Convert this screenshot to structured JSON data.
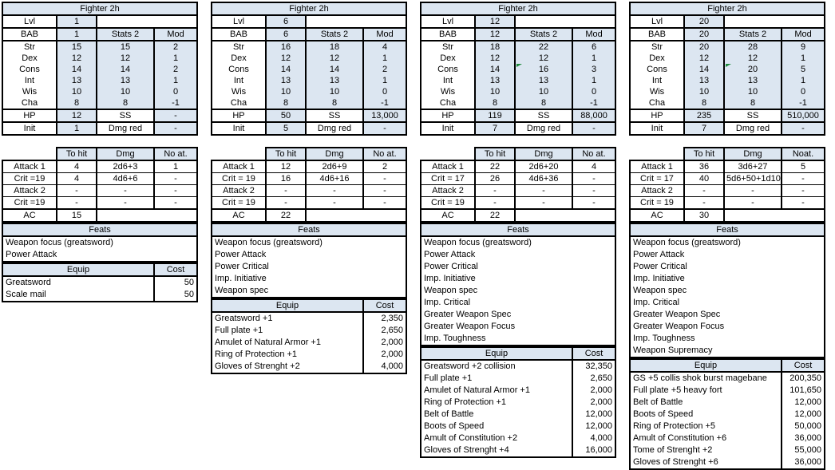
{
  "colors": {
    "cell_fill": "#dce6f1",
    "border": "#000000",
    "marker_green": "#1e8a3c"
  },
  "columns": [
    {
      "title": "Fighter 2h",
      "labels": {
        "lvl": "Lvl",
        "bab": "BAB",
        "stats2": "Stats 2",
        "mod": "Mod",
        "hp": "HP",
        "ss": "SS",
        "init": "Init",
        "dmgred": "Dmg red",
        "tohit": "To hit",
        "dmg": "Dmg",
        "noat": "No at.",
        "ac": "AC",
        "feats": "Feats",
        "equip": "Equip",
        "cost": "Cost"
      },
      "lvl": "1",
      "bab": "1",
      "abilities": [
        {
          "label": "Str",
          "base": "15",
          "stats2": "15",
          "mod": "2",
          "marker": false
        },
        {
          "label": "Dex",
          "base": "12",
          "stats2": "12",
          "mod": "1",
          "marker": false
        },
        {
          "label": "Cons",
          "base": "14",
          "stats2": "14",
          "mod": "2",
          "marker": false
        },
        {
          "label": "Int",
          "base": "13",
          "stats2": "13",
          "mod": "1",
          "marker": false
        },
        {
          "label": "Wis",
          "base": "10",
          "stats2": "10",
          "mod": "0",
          "marker": false
        },
        {
          "label": "Cha",
          "base": "8",
          "stats2": "8",
          "mod": "-1",
          "marker": false
        }
      ],
      "hp": "12",
      "ss_value": "-",
      "init": "1",
      "dmgred_value": "-",
      "attack_rows": [
        {
          "label": "Attack 1",
          "tohit": "4",
          "dmg": "2d6+3",
          "noat": "1"
        },
        {
          "label": "Crit =19",
          "tohit": "4",
          "dmg": "4d6+6",
          "noat": "-"
        },
        {
          "label": "Attack 2",
          "tohit": "-",
          "dmg": "-",
          "noat": "-"
        },
        {
          "label": "Crit =19",
          "tohit": "-",
          "dmg": "-",
          "noat": "-"
        }
      ],
      "ac": "15",
      "feats": [
        "Weapon focus (greatsword)",
        "Power Attack"
      ],
      "equip": [
        {
          "name": "Greatsword",
          "cost": "50"
        },
        {
          "name": "Scale mail",
          "cost": "50"
        }
      ]
    },
    {
      "title": "Fighter 2h",
      "labels": {
        "lvl": "Lvl",
        "bab": "BAB",
        "stats2": "Stats 2",
        "mod": "Mod",
        "hp": "HP",
        "ss": "SS",
        "init": "Init",
        "dmgred": "Dmg red",
        "tohit": "To hit",
        "dmg": "Dmg",
        "noat": "No at.",
        "ac": "AC",
        "feats": "Feats",
        "equip": "Equip",
        "cost": "Cost"
      },
      "lvl": "6",
      "bab": "6",
      "abilities": [
        {
          "label": "Str",
          "base": "16",
          "stats2": "18",
          "mod": "4",
          "marker": false
        },
        {
          "label": "Dex",
          "base": "12",
          "stats2": "12",
          "mod": "1",
          "marker": false
        },
        {
          "label": "Cons",
          "base": "14",
          "stats2": "14",
          "mod": "2",
          "marker": false
        },
        {
          "label": "Int",
          "base": "13",
          "stats2": "13",
          "mod": "1",
          "marker": false
        },
        {
          "label": "Wis",
          "base": "10",
          "stats2": "10",
          "mod": "0",
          "marker": false
        },
        {
          "label": "Cha",
          "base": "8",
          "stats2": "8",
          "mod": "-1",
          "marker": false
        }
      ],
      "hp": "50",
      "ss_value": "13,000",
      "init": "5",
      "dmgred_value": "-",
      "attack_rows": [
        {
          "label": "Attack 1",
          "tohit": "12",
          "dmg": "2d6+9",
          "noat": "2"
        },
        {
          "label": "Crit = 19",
          "tohit": "16",
          "dmg": "4d6+16",
          "noat": "-"
        },
        {
          "label": "Attack 2",
          "tohit": "-",
          "dmg": "-",
          "noat": "-"
        },
        {
          "label": "Crit = 19",
          "tohit": "-",
          "dmg": "-",
          "noat": "-"
        }
      ],
      "ac": "22",
      "feats": [
        "Weapon focus (greatsword)",
        "Power Attack",
        "Power Critical",
        "Imp. Initiative",
        "Weapon spec"
      ],
      "equip": [
        {
          "name": "Greatsword +1",
          "cost": "2,350"
        },
        {
          "name": "Full plate +1",
          "cost": "2,650"
        },
        {
          "name": "Amulet of Natural Armor +1",
          "cost": "2,000"
        },
        {
          "name": "Ring of Protection +1",
          "cost": "2,000"
        },
        {
          "name": "Gloves of Strenght +2",
          "cost": "4,000"
        }
      ]
    },
    {
      "title": "Fighter 2h",
      "labels": {
        "lvl": "Lvl",
        "bab": "BAB",
        "stats2": "Stats 2",
        "mod": "Mod",
        "hp": "HP",
        "ss": "SS",
        "init": "Init",
        "dmgred": "Dmg red",
        "tohit": "To hit",
        "dmg": "Dmg",
        "noat": "No at.",
        "ac": "AC",
        "feats": "Feats",
        "equip": "Equip",
        "cost": "Cost"
      },
      "lvl": "12",
      "bab": "12",
      "abilities": [
        {
          "label": "Str",
          "base": "18",
          "stats2": "22",
          "mod": "6",
          "marker": false
        },
        {
          "label": "Dex",
          "base": "12",
          "stats2": "12",
          "mod": "1",
          "marker": false
        },
        {
          "label": "Cons",
          "base": "14",
          "stats2": "16",
          "mod": "3",
          "marker": true
        },
        {
          "label": "Int",
          "base": "13",
          "stats2": "13",
          "mod": "1",
          "marker": false
        },
        {
          "label": "Wis",
          "base": "10",
          "stats2": "10",
          "mod": "0",
          "marker": false
        },
        {
          "label": "Cha",
          "base": "8",
          "stats2": "8",
          "mod": "-1",
          "marker": false
        }
      ],
      "hp": "119",
      "ss_value": "88,000",
      "init": "7",
      "dmgred_value": "-",
      "attack_rows": [
        {
          "label": "Attack 1",
          "tohit": "22",
          "dmg": "2d6+20",
          "noat": "4"
        },
        {
          "label": "Crit = 17",
          "tohit": "26",
          "dmg": "4d6+36",
          "noat": "-"
        },
        {
          "label": "Attack 2",
          "tohit": "-",
          "dmg": "-",
          "noat": "-"
        },
        {
          "label": "Crit = 19",
          "tohit": "-",
          "dmg": "-",
          "noat": "-"
        }
      ],
      "ac": "22",
      "feats": [
        "Weapon focus (greatsword)",
        "Power Attack",
        "Power Critical",
        "Imp. Initiative",
        "Weapon spec",
        "Imp. Critical",
        "Greater Weapon Spec",
        "Greater Weapon Focus",
        "Imp. Toughness"
      ],
      "equip": [
        {
          "name": "Greatsword +2 collision",
          "cost": "32,350"
        },
        {
          "name": "Full plate +1",
          "cost": "2,650"
        },
        {
          "name": "Amulet of Natural Armor +1",
          "cost": "2,000"
        },
        {
          "name": "Ring of Protection +1",
          "cost": "2,000"
        },
        {
          "name": "Belt of Battle",
          "cost": "12,000"
        },
        {
          "name": "Boots of Speed",
          "cost": "12,000"
        },
        {
          "name": "Amult of Constitution +2",
          "cost": "4,000"
        },
        {
          "name": "Gloves of Strenght +4",
          "cost": "16,000"
        }
      ]
    },
    {
      "title": "Fighter 2h",
      "labels": {
        "lvl": "Lvl",
        "bab": "BAB",
        "stats2": "Stats 2",
        "mod": "Mod",
        "hp": "HP",
        "ss": "SS",
        "init": "Init",
        "dmgred": "Dmg red",
        "tohit": "To hit",
        "dmg": "Dmg",
        "noat": "Noat.",
        "ac": "AC",
        "feats": "Feats",
        "equip": "Equip",
        "cost": "Cost"
      },
      "lvl": "20",
      "bab": "20",
      "abilities": [
        {
          "label": "Str",
          "base": "20",
          "stats2": "28",
          "mod": "9",
          "marker": false
        },
        {
          "label": "Dex",
          "base": "12",
          "stats2": "12",
          "mod": "1",
          "marker": false
        },
        {
          "label": "Cons",
          "base": "14",
          "stats2": "20",
          "mod": "5",
          "marker": true
        },
        {
          "label": "Int",
          "base": "13",
          "stats2": "13",
          "mod": "1",
          "marker": false
        },
        {
          "label": "Wis",
          "base": "10",
          "stats2": "10",
          "mod": "0",
          "marker": false
        },
        {
          "label": "Cha",
          "base": "8",
          "stats2": "8",
          "mod": "-1",
          "marker": false
        }
      ],
      "hp": "235",
      "ss_value": "510,000",
      "init": "7",
      "dmgred_value": "-",
      "attack_rows": [
        {
          "label": "Attack 1",
          "tohit": "36",
          "dmg": "3d6+27",
          "noat": "5"
        },
        {
          "label": "Crit = 17",
          "tohit": "40",
          "dmg": "5d6+50+1d10",
          "noat": "-"
        },
        {
          "label": "Attack 2",
          "tohit": "-",
          "dmg": "-",
          "noat": "-"
        },
        {
          "label": "Crit = 19",
          "tohit": "-",
          "dmg": "-",
          "noat": "-"
        }
      ],
      "ac": "30",
      "feats": [
        "Weapon focus (greatsword)",
        "Power Attack",
        "Power Critical",
        "Imp. Initiative",
        "Weapon spec",
        "Imp. Critical",
        "Greater Weapon Spec",
        "Greater Weapon Focus",
        "Imp. Toughness",
        "Weapon Supremacy"
      ],
      "equip": [
        {
          "name": "GS +5 collis shok burst magebane",
          "cost": "200,350"
        },
        {
          "name": "Full plate +5 heavy fort",
          "cost": "101,650"
        },
        {
          "name": "Belt of Battle",
          "cost": "12,000"
        },
        {
          "name": "Boots of Speed",
          "cost": "12,000"
        },
        {
          "name": "Ring of Protection +5",
          "cost": "50,000"
        },
        {
          "name": "Amult of Constitution +6",
          "cost": "36,000"
        },
        {
          "name": "Tome of Strenght +2",
          "cost": "55,000"
        },
        {
          "name": "Gloves of Strenght +6",
          "cost": "36,000"
        }
      ]
    }
  ]
}
